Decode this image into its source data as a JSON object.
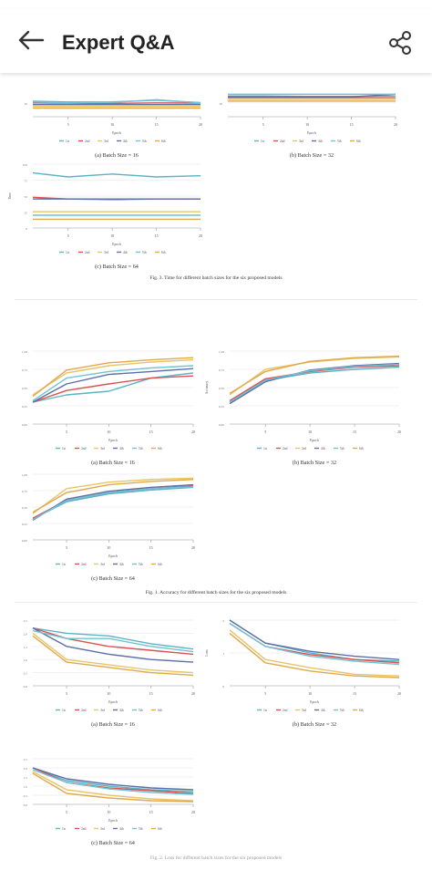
{
  "app": {
    "title": "Expert Q&A"
  },
  "icons": {
    "back": "back-arrow-icon",
    "share": "share-icon"
  },
  "colors": {
    "series": [
      "#5ab4c6",
      "#d9534f",
      "#e8c56a",
      "#5b6fa8",
      "#6fc3d6",
      "#e0a94a"
    ]
  },
  "legend": [
    "1st",
    "2nd",
    "3rd",
    "4th",
    "5th",
    "6th"
  ],
  "figures": [
    {
      "id": "time",
      "caption": "Fig. 3.   Time for different batch sizes for the six proposed models",
      "panels": [
        {
          "caption": "(a) Batch Size = 16",
          "xlabel": "Epoch",
          "xticks": [
            "5",
            "10",
            "15",
            "20"
          ],
          "yticks": [
            "10"
          ]
        },
        {
          "caption": "(b) Batch Size = 32",
          "xlabel": "Epoch",
          "xticks": [
            "5",
            "10",
            "15",
            "20"
          ],
          "yticks": [
            "20"
          ]
        },
        {
          "caption": "(c) Batch Size = 64",
          "xlabel": "Epoch",
          "ylabel": "Time",
          "xticks": [
            "5",
            "10",
            "15",
            "20"
          ],
          "yticks": [
            "100",
            "75",
            "50",
            "25",
            "0"
          ]
        }
      ]
    },
    {
      "id": "accuracy",
      "caption": "Fig. 1.   Accuracy for different batch sizes for the six proposed models",
      "panels": [
        {
          "caption": "(a) Batch Size = 16",
          "xlabel": "Epoch",
          "xticks": [
            "5",
            "10",
            "15",
            "20"
          ],
          "yticks": [
            "1,00",
            "0,75",
            "0,50",
            "0,25",
            "0,00"
          ]
        },
        {
          "caption": "(b) Batch Size = 32",
          "xlabel": "Epoch",
          "ylabel": "Accuracy",
          "xticks": [
            "5",
            "10",
            "15",
            "20"
          ],
          "yticks": [
            "1,00",
            "0,75",
            "0,50",
            "0,25",
            "0,00"
          ]
        },
        {
          "caption": "(c) Batch Size = 64",
          "xlabel": "Epoch",
          "xticks": [
            "5",
            "10",
            "15",
            "20"
          ],
          "yticks": [
            "1,00",
            "0,75",
            "0,50",
            "0,25",
            "0,00"
          ]
        }
      ]
    },
    {
      "id": "loss",
      "caption": "Fig. 2.   Loss for different batch sizes for the six proposed models",
      "panels": [
        {
          "caption": "(a) Batch Size = 16",
          "xlabel": "Epoch",
          "xticks": [
            "5",
            "10",
            "15",
            "20"
          ],
          "yticks": [
            "2,5",
            "2,0",
            "1,5",
            "1,0",
            "0,5",
            "0,0"
          ]
        },
        {
          "caption": "(b) Batch Size = 32",
          "xlabel": "Epoch",
          "ylabel": "Loss",
          "xticks": [
            "5",
            "10",
            "15",
            "20"
          ],
          "yticks": [
            "2",
            "1",
            "0"
          ]
        },
        {
          "caption": "(c) Batch Size = 64",
          "xlabel": "Epoch",
          "xticks": [
            "5",
            "10",
            "15",
            "20"
          ],
          "yticks": [
            "2,5",
            "2,0",
            "1,5",
            "1,0",
            "0,5",
            "0,0"
          ]
        }
      ]
    }
  ],
  "chart_data": [
    {
      "type": "line",
      "x": [
        1,
        5,
        10,
        15,
        20
      ],
      "ylim": [
        0,
        20
      ],
      "series": [
        {
          "name": "1st",
          "values": [
            9,
            8.5,
            8.6,
            9.5,
            8.2
          ]
        },
        {
          "name": "2nd",
          "values": [
            8,
            7.8,
            7.7,
            8.0,
            7.9
          ]
        },
        {
          "name": "3rd",
          "values": [
            6,
            6,
            6,
            6,
            6
          ]
        },
        {
          "name": "4th",
          "values": [
            7,
            7,
            7,
            7,
            7
          ]
        },
        {
          "name": "5th",
          "values": [
            8.5,
            8,
            8.3,
            9.8,
            8
          ]
        },
        {
          "name": "6th",
          "values": [
            5,
            5,
            5,
            5,
            5
          ]
        }
      ]
    },
    {
      "type": "line",
      "x": [
        1,
        5,
        10,
        15,
        20
      ],
      "ylim": [
        0,
        40
      ],
      "series": [
        {
          "name": "1st",
          "values": [
            24,
            24,
            23.5,
            23.5,
            24
          ]
        },
        {
          "name": "2nd",
          "values": [
            22,
            22,
            22,
            22,
            22
          ]
        },
        {
          "name": "3rd",
          "values": [
            20,
            20,
            20,
            20,
            20
          ]
        },
        {
          "name": "4th",
          "values": [
            23,
            23,
            23,
            23,
            26
          ]
        },
        {
          "name": "5th",
          "values": [
            26,
            26,
            26,
            26,
            26
          ]
        },
        {
          "name": "6th",
          "values": [
            18,
            18,
            18,
            18,
            18
          ]
        }
      ]
    },
    {
      "type": "line",
      "x": [
        1,
        5,
        10,
        15,
        20
      ],
      "ylim": [
        0,
        110
      ],
      "series": [
        {
          "name": "1st",
          "values": [
            95,
            88,
            93,
            88,
            90
          ]
        },
        {
          "name": "2nd",
          "values": [
            53,
            50,
            50,
            50,
            50
          ]
        },
        {
          "name": "3rd",
          "values": [
            28,
            28,
            28,
            28,
            28
          ]
        },
        {
          "name": "4th",
          "values": [
            50,
            50,
            49,
            50,
            50
          ]
        },
        {
          "name": "5th",
          "values": [
            22,
            22,
            22,
            22,
            22
          ]
        },
        {
          "name": "6th",
          "values": [
            15,
            15,
            15,
            15,
            15
          ]
        }
      ]
    },
    {
      "type": "line",
      "x": [
        1,
        5,
        10,
        15,
        20
      ],
      "ylim": [
        0,
        1
      ],
      "series": [
        {
          "name": "1st",
          "values": [
            0.3,
            0.4,
            0.45,
            0.63,
            0.7
          ]
        },
        {
          "name": "2nd",
          "values": [
            0.3,
            0.46,
            0.55,
            0.63,
            0.66
          ]
        },
        {
          "name": "3rd",
          "values": [
            0.4,
            0.7,
            0.8,
            0.85,
            0.88
          ]
        },
        {
          "name": "4th",
          "values": [
            0.3,
            0.55,
            0.68,
            0.72,
            0.76
          ]
        },
        {
          "name": "5th",
          "values": [
            0.32,
            0.63,
            0.72,
            0.77,
            0.8
          ]
        },
        {
          "name": "6th",
          "values": [
            0.38,
            0.74,
            0.84,
            0.88,
            0.91
          ]
        }
      ]
    },
    {
      "type": "line",
      "x": [
        1,
        5,
        10,
        15,
        20
      ],
      "ylim": [
        0,
        1
      ],
      "series": [
        {
          "name": "1st",
          "values": [
            0.3,
            0.6,
            0.7,
            0.75,
            0.78
          ]
        },
        {
          "name": "2nd",
          "values": [
            0.32,
            0.62,
            0.72,
            0.78,
            0.8
          ]
        },
        {
          "name": "3rd",
          "values": [
            0.4,
            0.75,
            0.85,
            0.9,
            0.92
          ]
        },
        {
          "name": "4th",
          "values": [
            0.28,
            0.58,
            0.74,
            0.8,
            0.83
          ]
        },
        {
          "name": "5th",
          "values": [
            0.3,
            0.6,
            0.73,
            0.79,
            0.82
          ]
        },
        {
          "name": "6th",
          "values": [
            0.42,
            0.72,
            0.86,
            0.91,
            0.93
          ]
        }
      ]
    },
    {
      "type": "line",
      "x": [
        1,
        5,
        10,
        15,
        20
      ],
      "ylim": [
        0,
        1
      ],
      "series": [
        {
          "name": "1st",
          "values": [
            0.32,
            0.58,
            0.7,
            0.76,
            0.8
          ]
        },
        {
          "name": "2nd",
          "values": [
            0.33,
            0.6,
            0.72,
            0.78,
            0.82
          ]
        },
        {
          "name": "3rd",
          "values": [
            0.4,
            0.78,
            0.88,
            0.92,
            0.94
          ]
        },
        {
          "name": "4th",
          "values": [
            0.3,
            0.62,
            0.74,
            0.8,
            0.84
          ]
        },
        {
          "name": "5th",
          "values": [
            0.31,
            0.6,
            0.72,
            0.78,
            0.81
          ]
        },
        {
          "name": "6th",
          "values": [
            0.42,
            0.72,
            0.84,
            0.89,
            0.92
          ]
        }
      ]
    },
    {
      "type": "line",
      "x": [
        1,
        5,
        10,
        15,
        20
      ],
      "ylim": [
        0,
        2.5
      ],
      "series": [
        {
          "name": "1st",
          "values": [
            2.2,
            2.0,
            1.9,
            1.6,
            1.4
          ]
        },
        {
          "name": "2nd",
          "values": [
            2.2,
            1.8,
            1.5,
            1.35,
            1.2
          ]
        },
        {
          "name": "3rd",
          "values": [
            2.0,
            1.0,
            0.8,
            0.6,
            0.5
          ]
        },
        {
          "name": "4th",
          "values": [
            2.2,
            1.5,
            1.2,
            1.0,
            0.9
          ]
        },
        {
          "name": "5th",
          "values": [
            2.1,
            1.8,
            1.8,
            1.5,
            1.3
          ]
        },
        {
          "name": "6th",
          "values": [
            1.9,
            0.9,
            0.7,
            0.5,
            0.4
          ]
        }
      ]
    },
    {
      "type": "line",
      "x": [
        1,
        5,
        10,
        15,
        20
      ],
      "ylim": [
        0,
        2
      ],
      "series": [
        {
          "name": "1st",
          "values": [
            2.0,
            1.3,
            1.0,
            0.8,
            0.75
          ]
        },
        {
          "name": "2nd",
          "values": [
            1.9,
            1.2,
            0.95,
            0.8,
            0.7
          ]
        },
        {
          "name": "3rd",
          "values": [
            1.7,
            0.8,
            0.55,
            0.35,
            0.3
          ]
        },
        {
          "name": "4th",
          "values": [
            2.0,
            1.3,
            1.05,
            0.9,
            0.8
          ]
        },
        {
          "name": "5th",
          "values": [
            1.9,
            1.2,
            0.9,
            0.75,
            0.65
          ]
        },
        {
          "name": "6th",
          "values": [
            1.6,
            0.7,
            0.45,
            0.3,
            0.25
          ]
        }
      ]
    },
    {
      "type": "line",
      "x": [
        1,
        5,
        10,
        15,
        20
      ],
      "ylim": [
        0,
        2.5
      ],
      "series": [
        {
          "name": "1st",
          "values": [
            2.0,
            1.3,
            1.0,
            0.8,
            0.7
          ]
        },
        {
          "name": "2nd",
          "values": [
            2.0,
            1.2,
            0.9,
            0.75,
            0.6
          ]
        },
        {
          "name": "3rd",
          "values": [
            1.8,
            0.8,
            0.5,
            0.3,
            0.2
          ]
        },
        {
          "name": "4th",
          "values": [
            2.0,
            1.4,
            1.1,
            0.9,
            0.8
          ]
        },
        {
          "name": "5th",
          "values": [
            1.9,
            1.2,
            0.85,
            0.65,
            0.55
          ]
        },
        {
          "name": "6th",
          "values": [
            1.7,
            0.6,
            0.35,
            0.2,
            0.15
          ]
        }
      ]
    }
  ]
}
